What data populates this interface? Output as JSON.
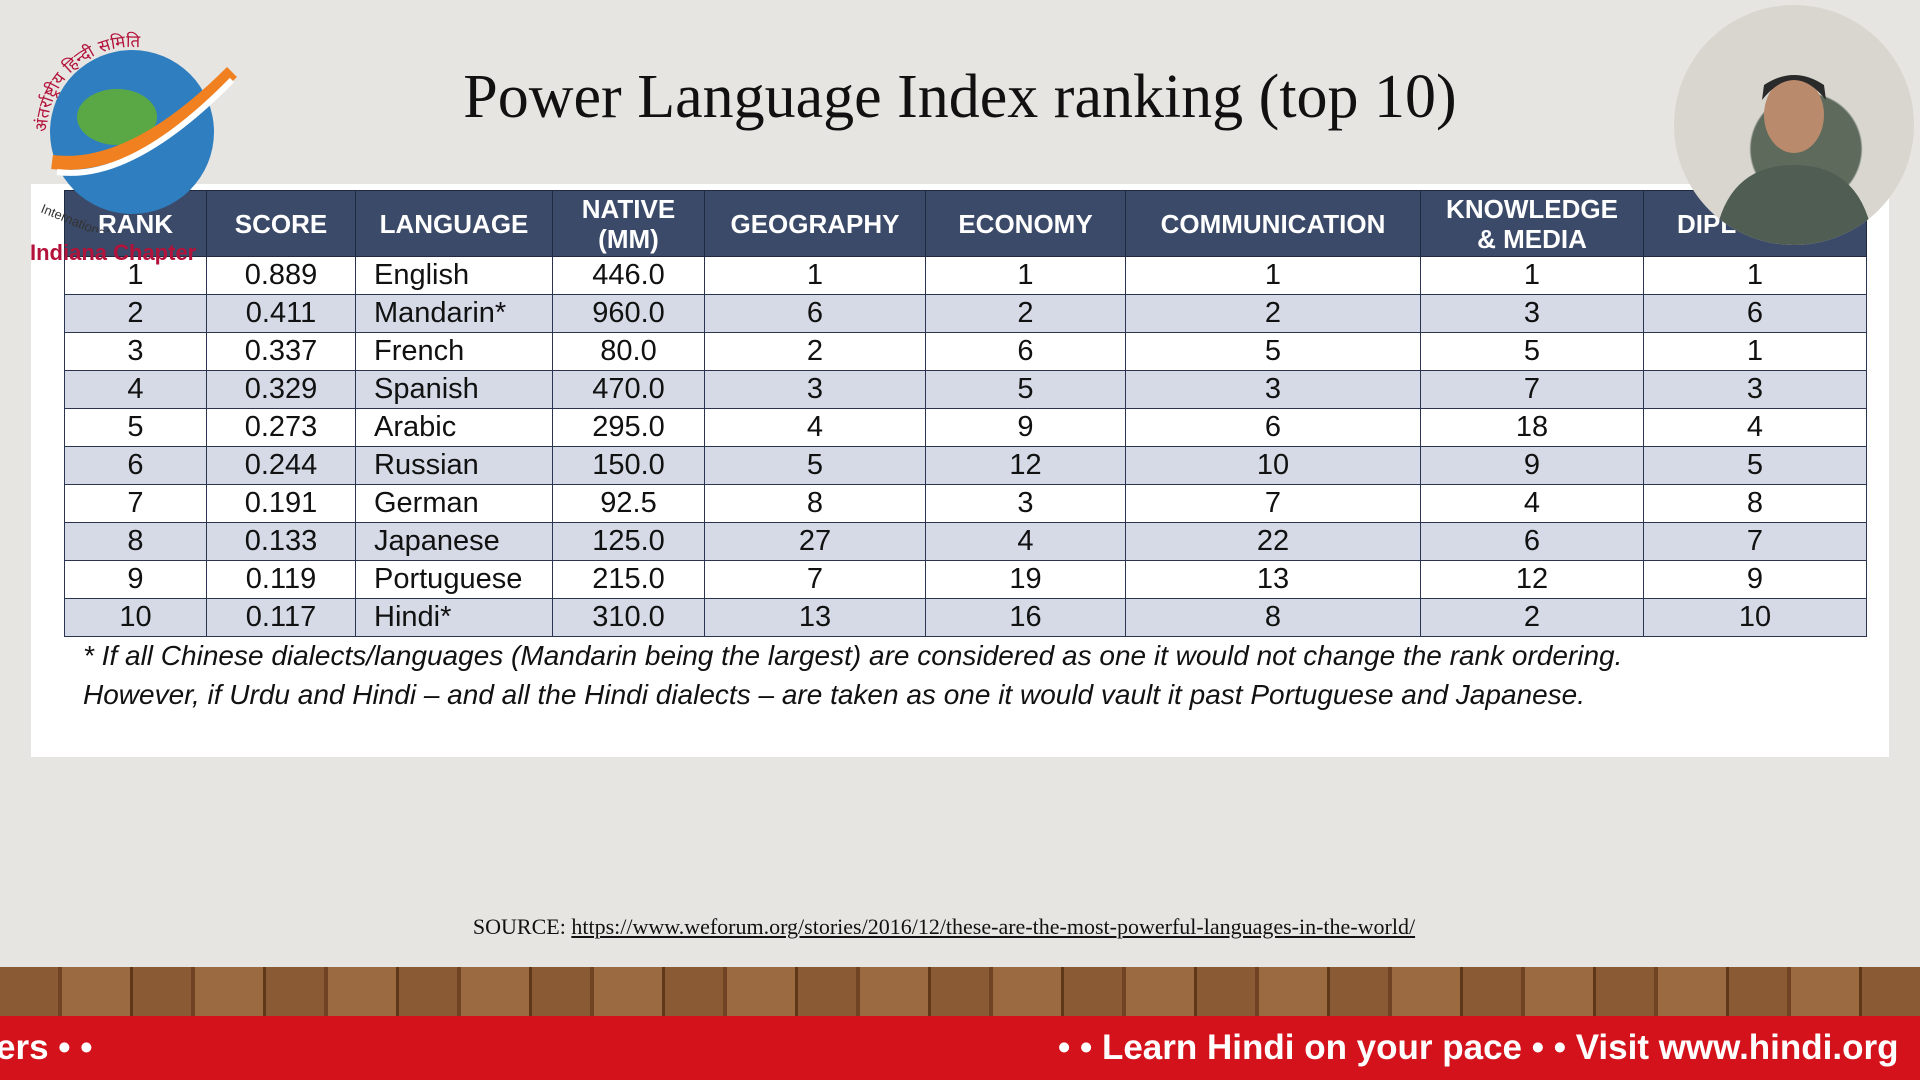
{
  "title": "Power Language Index ranking (top 10)",
  "logo": {
    "arc_text": "अंतर्राष्ट्रीय हिन्दी समिति",
    "side_text": "International Hindi Association",
    "chapter": "Indiana Chapter"
  },
  "table": {
    "headers": [
      "RANK",
      "SCORE",
      "LANGUAGE",
      "NATIVE\n(MM)",
      "GEOGRAPHY",
      "ECONOMY",
      "COMMUNICATION",
      "KNOWLEDGE\n& MEDIA",
      "DIPLOMACY"
    ],
    "rows": [
      [
        "1",
        "0.889",
        "English",
        "446.0",
        "1",
        "1",
        "1",
        "1",
        "1"
      ],
      [
        "2",
        "0.411",
        "Mandarin*",
        "960.0",
        "6",
        "2",
        "2",
        "3",
        "6"
      ],
      [
        "3",
        "0.337",
        "French",
        "80.0",
        "2",
        "6",
        "5",
        "5",
        "1"
      ],
      [
        "4",
        "0.329",
        "Spanish",
        "470.0",
        "3",
        "5",
        "3",
        "7",
        "3"
      ],
      [
        "5",
        "0.273",
        "Arabic",
        "295.0",
        "4",
        "9",
        "6",
        "18",
        "4"
      ],
      [
        "6",
        "0.244",
        "Russian",
        "150.0",
        "5",
        "12",
        "10",
        "9",
        "5"
      ],
      [
        "7",
        "0.191",
        "German",
        "92.5",
        "8",
        "3",
        "7",
        "4",
        "8"
      ],
      [
        "8",
        "0.133",
        "Japanese",
        "125.0",
        "27",
        "4",
        "22",
        "6",
        "7"
      ],
      [
        "9",
        "0.119",
        "Portuguese",
        "215.0",
        "7",
        "19",
        "13",
        "12",
        "9"
      ],
      [
        "10",
        "0.117",
        "Hindi*",
        "310.0",
        "13",
        "16",
        "8",
        "2",
        "10"
      ]
    ]
  },
  "footnote": "* If all Chinese dialects/languages (Mandarin being the largest) are considered as one it would not change the rank ordering. However, if Urdu and Hindi – and all the Hindi dialects – are taken as one it would vault it past Portuguese and Japanese.",
  "source": {
    "label": "SOURCE:",
    "url": "https://www.weforum.org/stories/2016/12/these-are-the-most-powerful-languages-in-the-world/"
  },
  "ticker": {
    "left": "ers • •",
    "right": "• • Learn Hindi on your pace • • Visit www.hindi.org"
  }
}
